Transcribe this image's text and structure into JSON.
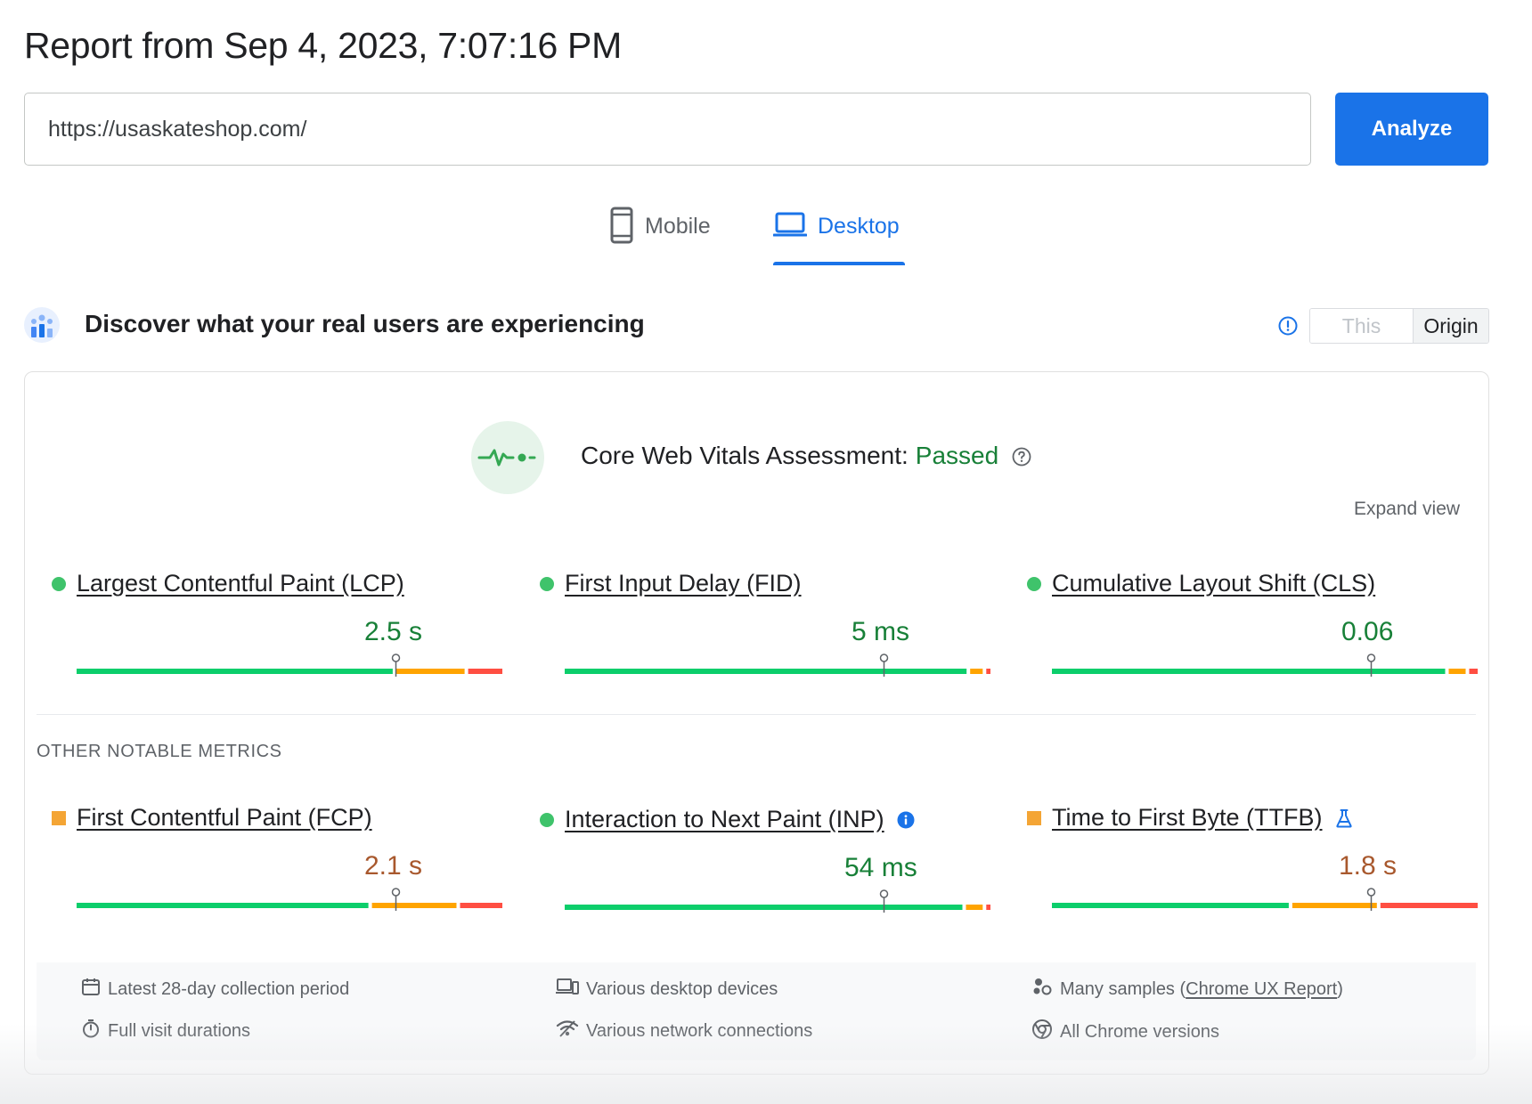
{
  "header": {
    "title": "Report from Sep 4, 2023, 7:07:16 PM",
    "url_value": "https://usaskateshop.com/",
    "analyze_label": "Analyze"
  },
  "tabs": [
    {
      "label": "Mobile",
      "icon": "smartphone-icon",
      "active": false
    },
    {
      "label": "Desktop",
      "icon": "laptop-icon",
      "active": true
    }
  ],
  "field_data": {
    "title": "Discover what your real users are experiencing",
    "scope_options": [
      "This URL",
      "Origin"
    ],
    "selected_scope": "Origin"
  },
  "assessment": {
    "label": "Core Web Vitals Assessment:",
    "status": "Passed",
    "expand_label": "Expand view"
  },
  "core_metrics": [
    {
      "name": "Largest Contentful Paint (LCP)",
      "value": "2.5 s",
      "rating": "good",
      "distribution": {
        "good": 0.74,
        "needs_improvement": 0.16,
        "poor": 0.08
      },
      "marker": 0.75
    },
    {
      "name": "First Input Delay (FID)",
      "value": "5 ms",
      "rating": "good",
      "distribution": {
        "good": 0.96,
        "needs_improvement": 0.03,
        "poor": 0.01
      },
      "marker": 0.75
    },
    {
      "name": "Cumulative Layout Shift (CLS)",
      "value": "0.06",
      "rating": "good",
      "distribution": {
        "good": 0.93,
        "needs_improvement": 0.04,
        "poor": 0.02
      },
      "marker": 0.75
    }
  ],
  "other_label": "OTHER NOTABLE METRICS",
  "other_metrics": [
    {
      "name": "First Contentful Paint (FCP)",
      "value": "2.1 s",
      "rating": "needs-improvement",
      "distribution": {
        "good": 0.69,
        "needs_improvement": 0.2,
        "poor": 0.1
      },
      "marker": 0.75
    },
    {
      "name": "Interaction to Next Paint (INP)",
      "value": "54 ms",
      "rating": "good",
      "distribution": {
        "good": 0.95,
        "needs_improvement": 0.04,
        "poor": 0.01
      },
      "marker": 0.75
    },
    {
      "name": "Time to First Byte (TTFB)",
      "value": "1.8 s",
      "rating": "needs-improvement",
      "distribution": {
        "good": 0.56,
        "needs_improvement": 0.2,
        "poor": 0.23
      },
      "marker": 0.75
    }
  ],
  "footer": {
    "collection_period": "Latest 28-day collection period",
    "visit_durations": "Full visit durations",
    "devices": "Various desktop devices",
    "network": "Various network connections",
    "samples_prefix": "Many samples (",
    "samples_link": "Chrome UX Report",
    "samples_suffix": ")",
    "chrome_versions": "All Chrome versions"
  },
  "colors": {
    "accent": "#1a73e8",
    "good": "#0cce6b",
    "needs_improvement": "#ffa400",
    "poor": "#ff4e42"
  }
}
